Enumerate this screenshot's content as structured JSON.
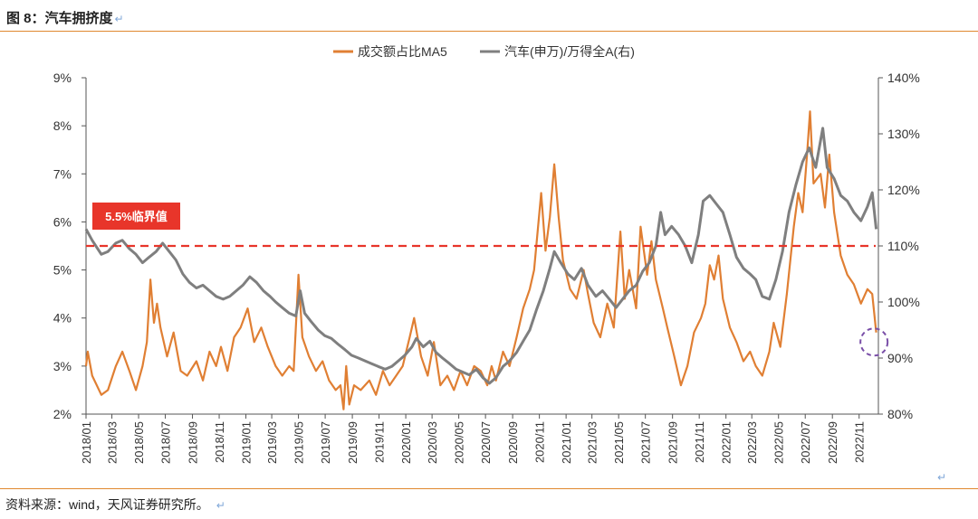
{
  "figure": {
    "title": "图 8：汽车拥挤度",
    "source": "资料来源：wind，天风证券研究所。",
    "return_mark": "↵"
  },
  "colors": {
    "orange": "#e07f33",
    "gray": "#7f7f7f",
    "threshold": "#e8352a",
    "circle": "#7a4fa8",
    "rule": "#e0882f"
  },
  "chart_data": {
    "type": "line",
    "series": [
      {
        "name": "成交额占比MA5",
        "axis": "left",
        "color": "#e07f33",
        "points": [
          [
            "2018-01-01",
            3.0
          ],
          [
            "2018-01-05",
            3.3
          ],
          [
            "2018-01-15",
            2.8
          ],
          [
            "2018-02-05",
            2.4
          ],
          [
            "2018-02-20",
            2.5
          ],
          [
            "2018-03-10",
            3.0
          ],
          [
            "2018-03-25",
            3.3
          ],
          [
            "2018-04-10",
            2.9
          ],
          [
            "2018-04-25",
            2.5
          ],
          [
            "2018-05-10",
            3.0
          ],
          [
            "2018-05-20",
            3.5
          ],
          [
            "2018-05-28",
            4.8
          ],
          [
            "2018-06-05",
            3.9
          ],
          [
            "2018-06-12",
            4.3
          ],
          [
            "2018-06-20",
            3.8
          ],
          [
            "2018-07-05",
            3.2
          ],
          [
            "2018-07-20",
            3.7
          ],
          [
            "2018-08-05",
            2.9
          ],
          [
            "2018-08-20",
            2.8
          ],
          [
            "2018-09-10",
            3.1
          ],
          [
            "2018-09-25",
            2.7
          ],
          [
            "2018-10-10",
            3.3
          ],
          [
            "2018-10-25",
            3.0
          ],
          [
            "2018-11-05",
            3.4
          ],
          [
            "2018-11-20",
            2.9
          ],
          [
            "2018-12-05",
            3.6
          ],
          [
            "2018-12-20",
            3.8
          ],
          [
            "2019-01-05",
            4.2
          ],
          [
            "2019-01-20",
            3.5
          ],
          [
            "2019-02-05",
            3.8
          ],
          [
            "2019-02-20",
            3.4
          ],
          [
            "2019-03-10",
            3.0
          ],
          [
            "2019-03-25",
            2.8
          ],
          [
            "2019-04-10",
            3.0
          ],
          [
            "2019-04-20",
            2.9
          ],
          [
            "2019-05-01",
            4.9
          ],
          [
            "2019-05-10",
            3.6
          ],
          [
            "2019-05-25",
            3.2
          ],
          [
            "2019-06-10",
            2.9
          ],
          [
            "2019-06-25",
            3.1
          ],
          [
            "2019-07-10",
            2.7
          ],
          [
            "2019-07-25",
            2.5
          ],
          [
            "2019-08-05",
            2.6
          ],
          [
            "2019-08-12",
            2.1
          ],
          [
            "2019-08-18",
            3.0
          ],
          [
            "2019-08-25",
            2.2
          ],
          [
            "2019-09-05",
            2.6
          ],
          [
            "2019-09-20",
            2.5
          ],
          [
            "2019-10-10",
            2.7
          ],
          [
            "2019-10-25",
            2.4
          ],
          [
            "2019-11-10",
            2.9
          ],
          [
            "2019-11-25",
            2.6
          ],
          [
            "2019-12-10",
            2.8
          ],
          [
            "2019-12-25",
            3.0
          ],
          [
            "2020-01-10",
            3.6
          ],
          [
            "2020-01-20",
            4.0
          ],
          [
            "2020-02-05",
            3.2
          ],
          [
            "2020-02-20",
            2.8
          ],
          [
            "2020-03-05",
            3.5
          ],
          [
            "2020-03-20",
            2.6
          ],
          [
            "2020-04-05",
            2.8
          ],
          [
            "2020-04-20",
            2.5
          ],
          [
            "2020-05-05",
            2.9
          ],
          [
            "2020-05-20",
            2.6
          ],
          [
            "2020-06-05",
            3.0
          ],
          [
            "2020-06-20",
            2.9
          ],
          [
            "2020-07-05",
            2.6
          ],
          [
            "2020-07-15",
            3.0
          ],
          [
            "2020-07-25",
            2.7
          ],
          [
            "2020-08-10",
            3.3
          ],
          [
            "2020-08-25",
            3.0
          ],
          [
            "2020-09-10",
            3.6
          ],
          [
            "2020-09-25",
            4.2
          ],
          [
            "2020-10-10",
            4.6
          ],
          [
            "2020-10-20",
            5.0
          ],
          [
            "2020-11-05",
            6.6
          ],
          [
            "2020-11-15",
            5.4
          ],
          [
            "2020-11-25",
            6.1
          ],
          [
            "2020-12-05",
            7.2
          ],
          [
            "2020-12-15",
            6.1
          ],
          [
            "2020-12-25",
            5.2
          ],
          [
            "2021-01-10",
            4.6
          ],
          [
            "2021-01-25",
            4.4
          ],
          [
            "2021-02-10",
            5.0
          ],
          [
            "2021-02-20",
            4.5
          ],
          [
            "2021-03-05",
            3.9
          ],
          [
            "2021-03-20",
            3.6
          ],
          [
            "2021-04-05",
            4.3
          ],
          [
            "2021-04-20",
            3.8
          ],
          [
            "2021-05-05",
            5.8
          ],
          [
            "2021-05-15",
            4.4
          ],
          [
            "2021-05-25",
            5.0
          ],
          [
            "2021-06-10",
            4.2
          ],
          [
            "2021-06-20",
            5.9
          ],
          [
            "2021-07-05",
            4.9
          ],
          [
            "2021-07-15",
            5.6
          ],
          [
            "2021-07-25",
            4.8
          ],
          [
            "2021-08-10",
            4.2
          ],
          [
            "2021-08-20",
            3.8
          ],
          [
            "2021-09-05",
            3.2
          ],
          [
            "2021-09-20",
            2.6
          ],
          [
            "2021-10-05",
            3.0
          ],
          [
            "2021-10-20",
            3.7
          ],
          [
            "2021-11-05",
            4.0
          ],
          [
            "2021-11-15",
            4.3
          ],
          [
            "2021-11-25",
            5.1
          ],
          [
            "2021-12-05",
            4.8
          ],
          [
            "2021-12-15",
            5.3
          ],
          [
            "2021-12-25",
            4.4
          ],
          [
            "2022-01-10",
            3.8
          ],
          [
            "2022-01-25",
            3.5
          ],
          [
            "2022-02-10",
            3.1
          ],
          [
            "2022-02-25",
            3.3
          ],
          [
            "2022-03-10",
            3.0
          ],
          [
            "2022-03-25",
            2.8
          ],
          [
            "2022-04-10",
            3.3
          ],
          [
            "2022-04-20",
            3.9
          ],
          [
            "2022-05-05",
            3.4
          ],
          [
            "2022-05-20",
            4.5
          ],
          [
            "2022-06-05",
            5.9
          ],
          [
            "2022-06-15",
            6.6
          ],
          [
            "2022-06-25",
            6.2
          ],
          [
            "2022-07-05",
            7.4
          ],
          [
            "2022-07-12",
            8.3
          ],
          [
            "2022-07-20",
            6.8
          ],
          [
            "2022-08-05",
            7.0
          ],
          [
            "2022-08-15",
            6.3
          ],
          [
            "2022-08-25",
            7.4
          ],
          [
            "2022-09-05",
            6.2
          ],
          [
            "2022-09-20",
            5.3
          ],
          [
            "2022-10-05",
            4.9
          ],
          [
            "2022-10-20",
            4.7
          ],
          [
            "2022-11-05",
            4.3
          ],
          [
            "2022-11-20",
            4.6
          ],
          [
            "2022-12-01",
            4.5
          ],
          [
            "2022-12-10",
            3.7
          ]
        ]
      },
      {
        "name": "汽车(申万)/万得全A(右)",
        "axis": "right",
        "color": "#7f7f7f",
        "points": [
          [
            "2018-01-01",
            113
          ],
          [
            "2018-01-15",
            111
          ],
          [
            "2018-02-05",
            108.5
          ],
          [
            "2018-02-20",
            109
          ],
          [
            "2018-03-10",
            110.5
          ],
          [
            "2018-03-25",
            111
          ],
          [
            "2018-04-10",
            109.5
          ],
          [
            "2018-04-25",
            108.5
          ],
          [
            "2018-05-10",
            107
          ],
          [
            "2018-05-25",
            108
          ],
          [
            "2018-06-10",
            109
          ],
          [
            "2018-06-25",
            110.5
          ],
          [
            "2018-07-10",
            109
          ],
          [
            "2018-07-25",
            107.5
          ],
          [
            "2018-08-10",
            105
          ],
          [
            "2018-08-25",
            103.5
          ],
          [
            "2018-09-10",
            102.5
          ],
          [
            "2018-09-25",
            103
          ],
          [
            "2018-10-10",
            102
          ],
          [
            "2018-10-25",
            101
          ],
          [
            "2018-11-10",
            100.5
          ],
          [
            "2018-11-25",
            101
          ],
          [
            "2018-12-10",
            102
          ],
          [
            "2018-12-25",
            103
          ],
          [
            "2019-01-10",
            104.5
          ],
          [
            "2019-01-25",
            103.5
          ],
          [
            "2019-02-10",
            102
          ],
          [
            "2019-02-25",
            101
          ],
          [
            "2019-03-10",
            100
          ],
          [
            "2019-03-25",
            99
          ],
          [
            "2019-04-10",
            98
          ],
          [
            "2019-04-25",
            97.5
          ],
          [
            "2019-05-05",
            102
          ],
          [
            "2019-05-15",
            98
          ],
          [
            "2019-05-30",
            96.5
          ],
          [
            "2019-06-15",
            95
          ],
          [
            "2019-06-30",
            94
          ],
          [
            "2019-07-15",
            93.5
          ],
          [
            "2019-07-30",
            92.5
          ],
          [
            "2019-08-15",
            91.5
          ],
          [
            "2019-08-30",
            90.5
          ],
          [
            "2019-09-15",
            90
          ],
          [
            "2019-09-30",
            89.5
          ],
          [
            "2019-10-15",
            89
          ],
          [
            "2019-10-30",
            88.5
          ],
          [
            "2019-11-15",
            88
          ],
          [
            "2019-11-30",
            88.5
          ],
          [
            "2019-12-15",
            89.5
          ],
          [
            "2019-12-30",
            90.5
          ],
          [
            "2020-01-15",
            92
          ],
          [
            "2020-01-25",
            93.5
          ],
          [
            "2020-02-10",
            92
          ],
          [
            "2020-02-25",
            93
          ],
          [
            "2020-03-10",
            91
          ],
          [
            "2020-03-25",
            90
          ],
          [
            "2020-04-10",
            89
          ],
          [
            "2020-04-25",
            88
          ],
          [
            "2020-05-10",
            87.5
          ],
          [
            "2020-05-25",
            87
          ],
          [
            "2020-06-10",
            88
          ],
          [
            "2020-06-25",
            86.5
          ],
          [
            "2020-07-10",
            85.5
          ],
          [
            "2020-07-25",
            86.5
          ],
          [
            "2020-08-10",
            88.5
          ],
          [
            "2020-08-25",
            89.5
          ],
          [
            "2020-09-10",
            91
          ],
          [
            "2020-09-25",
            93
          ],
          [
            "2020-10-10",
            95
          ],
          [
            "2020-10-25",
            98.5
          ],
          [
            "2020-11-10",
            102
          ],
          [
            "2020-11-25",
            106
          ],
          [
            "2020-12-05",
            109
          ],
          [
            "2020-12-20",
            107
          ],
          [
            "2021-01-05",
            105
          ],
          [
            "2021-01-20",
            104
          ],
          [
            "2021-02-05",
            106
          ],
          [
            "2021-02-20",
            103
          ],
          [
            "2021-03-10",
            101
          ],
          [
            "2021-03-25",
            102
          ],
          [
            "2021-04-10",
            100.5
          ],
          [
            "2021-04-25",
            99
          ],
          [
            "2021-05-10",
            100.5
          ],
          [
            "2021-05-25",
            102
          ],
          [
            "2021-06-10",
            103
          ],
          [
            "2021-06-25",
            105.5
          ],
          [
            "2021-07-10",
            107
          ],
          [
            "2021-07-25",
            110
          ],
          [
            "2021-08-05",
            116
          ],
          [
            "2021-08-15",
            112
          ],
          [
            "2021-08-30",
            113.5
          ],
          [
            "2021-09-15",
            112
          ],
          [
            "2021-09-30",
            110
          ],
          [
            "2021-10-15",
            107
          ],
          [
            "2021-10-30",
            112
          ],
          [
            "2021-11-10",
            118
          ],
          [
            "2021-11-25",
            119
          ],
          [
            "2021-12-10",
            117.5
          ],
          [
            "2021-12-25",
            116
          ],
          [
            "2022-01-10",
            112
          ],
          [
            "2022-01-25",
            108
          ],
          [
            "2022-02-10",
            106
          ],
          [
            "2022-02-25",
            105
          ],
          [
            "2022-03-10",
            104
          ],
          [
            "2022-03-25",
            101
          ],
          [
            "2022-04-10",
            100.5
          ],
          [
            "2022-04-25",
            104
          ],
          [
            "2022-05-10",
            109
          ],
          [
            "2022-05-25",
            116
          ],
          [
            "2022-06-10",
            121
          ],
          [
            "2022-06-25",
            125
          ],
          [
            "2022-07-10",
            127.5
          ],
          [
            "2022-07-25",
            124
          ],
          [
            "2022-08-10",
            131
          ],
          [
            "2022-08-20",
            124
          ],
          [
            "2022-09-05",
            122
          ],
          [
            "2022-09-20",
            119
          ],
          [
            "2022-10-05",
            118
          ],
          [
            "2022-10-20",
            116
          ],
          [
            "2022-11-05",
            114.5
          ],
          [
            "2022-11-20",
            117
          ],
          [
            "2022-12-01",
            119.5
          ],
          [
            "2022-12-10",
            113
          ]
        ]
      }
    ],
    "left_axis": {
      "ylim": [
        2,
        9
      ],
      "ticks": [
        "2%",
        "3%",
        "4%",
        "5%",
        "6%",
        "7%",
        "8%",
        "9%"
      ]
    },
    "right_axis": {
      "ylim": [
        80,
        140
      ],
      "ticks": [
        "80%",
        "90%",
        "100%",
        "110%",
        "120%",
        "130%",
        "140%"
      ]
    },
    "x_range": [
      "2018-01-01",
      "2022-12-15"
    ],
    "x_ticks": [
      "2018/01",
      "2018/03",
      "2018/05",
      "2018/07",
      "2018/09",
      "2018/11",
      "2019/01",
      "2019/03",
      "2019/05",
      "2019/07",
      "2019/09",
      "2019/11",
      "2020/01",
      "2020/03",
      "2020/05",
      "2020/07",
      "2020/09",
      "2020/11",
      "2021/01",
      "2021/03",
      "2021/05",
      "2021/07",
      "2021/09",
      "2021/11",
      "2022/01",
      "2022/03",
      "2022/05",
      "2022/07",
      "2022/09",
      "2022/11"
    ],
    "threshold": {
      "value": 5.5,
      "label": "5.5%临界值",
      "style": "dashed"
    },
    "highlight": {
      "x": "2022-12-05",
      "y_left": 3.5,
      "shape": "dashed-circle"
    },
    "legend": {
      "position": "top-center"
    },
    "grid": false
  }
}
